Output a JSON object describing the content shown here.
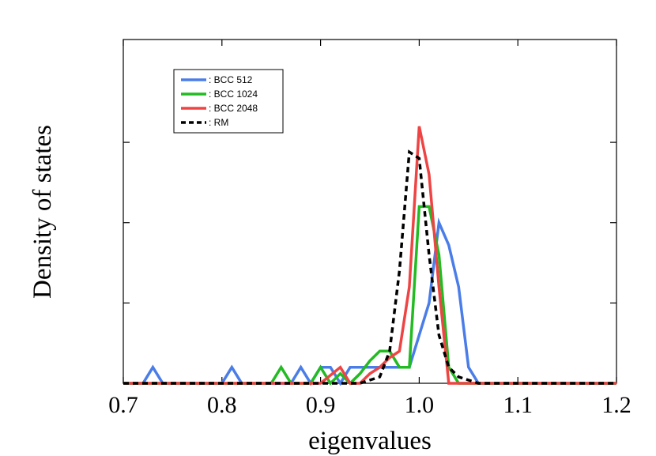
{
  "chart_data": {
    "type": "line",
    "title": "",
    "xlabel": "eigenvalues",
    "ylabel": "Density of states",
    "xlim": [
      0.7,
      1.2
    ],
    "ylim": [
      0,
      1.07
    ],
    "x_ticks": [
      0.7,
      0.8,
      0.9,
      1.0,
      1.1,
      1.2
    ],
    "x_tick_labels": [
      "0.7",
      "0.8",
      "0.9",
      "1.0",
      "1.1",
      "1.2"
    ],
    "y_ticks": [
      0.25,
      0.5,
      0.75
    ],
    "legend_position": "top-left",
    "grid": false,
    "series": [
      {
        "name": ": BCC 512",
        "color": "#4a7de8",
        "dash": "solid",
        "points": [
          [
            0.7,
            0
          ],
          [
            0.72,
            0
          ],
          [
            0.73,
            0.05
          ],
          [
            0.74,
            0
          ],
          [
            0.8,
            0
          ],
          [
            0.81,
            0.05
          ],
          [
            0.82,
            0
          ],
          [
            0.87,
            0
          ],
          [
            0.88,
            0.05
          ],
          [
            0.89,
            0
          ],
          [
            0.9,
            0.05
          ],
          [
            0.91,
            0.05
          ],
          [
            0.92,
            0
          ],
          [
            0.93,
            0.05
          ],
          [
            0.95,
            0.05
          ],
          [
            0.97,
            0.05
          ],
          [
            0.98,
            0.05
          ],
          [
            0.99,
            0.05
          ],
          [
            1.0,
            0.15
          ],
          [
            1.01,
            0.25
          ],
          [
            1.02,
            0.5
          ],
          [
            1.03,
            0.43
          ],
          [
            1.04,
            0.3
          ],
          [
            1.05,
            0.05
          ],
          [
            1.06,
            0
          ],
          [
            1.2,
            0
          ]
        ]
      },
      {
        "name": ": BCC 1024",
        "color": "#22bb22",
        "dash": "solid",
        "points": [
          [
            0.7,
            0
          ],
          [
            0.85,
            0
          ],
          [
            0.86,
            0.05
          ],
          [
            0.87,
            0
          ],
          [
            0.89,
            0
          ],
          [
            0.9,
            0.05
          ],
          [
            0.91,
            0
          ],
          [
            0.92,
            0.03
          ],
          [
            0.93,
            0
          ],
          [
            0.94,
            0.03
          ],
          [
            0.95,
            0.07
          ],
          [
            0.96,
            0.1
          ],
          [
            0.97,
            0.1
          ],
          [
            0.98,
            0.05
          ],
          [
            0.99,
            0.05
          ],
          [
            1.0,
            0.55
          ],
          [
            1.01,
            0.55
          ],
          [
            1.02,
            0.4
          ],
          [
            1.03,
            0.05
          ],
          [
            1.04,
            0
          ],
          [
            1.2,
            0
          ]
        ]
      },
      {
        "name": ": BCC 2048",
        "color": "#ee4444",
        "dash": "solid",
        "points": [
          [
            0.7,
            0
          ],
          [
            0.9,
            0
          ],
          [
            0.92,
            0.05
          ],
          [
            0.93,
            0
          ],
          [
            0.94,
            0
          ],
          [
            0.95,
            0.03
          ],
          [
            0.96,
            0.05
          ],
          [
            0.97,
            0.08
          ],
          [
            0.98,
            0.1
          ],
          [
            0.99,
            0.3
          ],
          [
            1.0,
            0.8
          ],
          [
            1.01,
            0.65
          ],
          [
            1.02,
            0.3
          ],
          [
            1.03,
            0
          ],
          [
            1.2,
            0
          ]
        ]
      },
      {
        "name": ": RM",
        "color": "#000000",
        "dash": "dashed",
        "points": [
          [
            0.7,
            0
          ],
          [
            0.94,
            0
          ],
          [
            0.96,
            0.02
          ],
          [
            0.97,
            0.1
          ],
          [
            0.98,
            0.35
          ],
          [
            0.99,
            0.72
          ],
          [
            1.0,
            0.7
          ],
          [
            1.01,
            0.4
          ],
          [
            1.02,
            0.15
          ],
          [
            1.03,
            0.05
          ],
          [
            1.04,
            0.02
          ],
          [
            1.06,
            0
          ],
          [
            1.2,
            0
          ]
        ]
      }
    ]
  }
}
